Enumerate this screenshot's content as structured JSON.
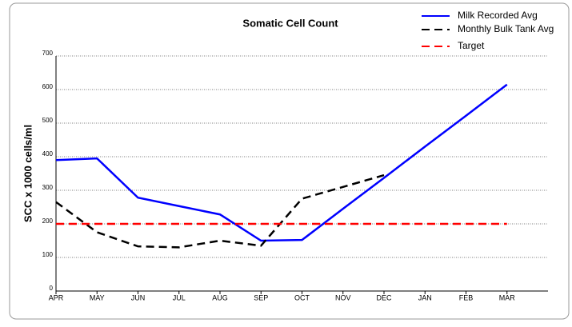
{
  "chart_data": {
    "type": "line",
    "title": "Somatic Cell Count",
    "y_label": "SCC x 1000 cells/ml",
    "categories": [
      "APR",
      "MAY",
      "JUN",
      "JUL",
      "AUG",
      "SEP",
      "OCT",
      "NOV",
      "DEC",
      "JAN",
      "FEB",
      "MAR"
    ],
    "series": [
      {
        "name": "Milk Recorded Avg",
        "color": "#0000ff",
        "dash": "none",
        "values": [
          390,
          395,
          278,
          253,
          228,
          150,
          152,
          245,
          337,
          430,
          522,
          615
        ]
      },
      {
        "name": "Monthly Bulk Tank Avg",
        "color": "#000000",
        "dash": "10 6",
        "values": [
          265,
          175,
          133,
          130,
          150,
          135,
          275,
          310,
          345,
          null,
          null,
          null
        ]
      },
      {
        "name": "Target",
        "color": "#ff0000",
        "dash": "10 6",
        "values": [
          200,
          200,
          200,
          200,
          200,
          200,
          200,
          200,
          200,
          200,
          200,
          200
        ]
      }
    ],
    "ylim": [
      0,
      700
    ],
    "yticks": [
      0,
      100,
      200,
      300,
      400,
      500,
      600,
      700
    ],
    "grid": true
  }
}
